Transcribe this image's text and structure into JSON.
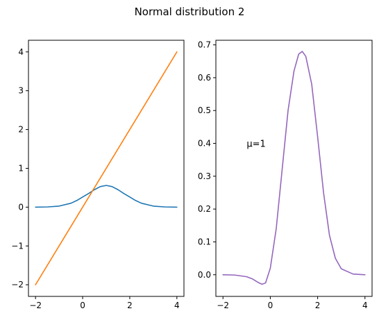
{
  "figure": {
    "suptitle": "Normal distribution 2"
  },
  "chart_data": [
    {
      "type": "line",
      "title": "",
      "xlabel": "",
      "ylabel": "",
      "xlim": [
        -2.3,
        4.3
      ],
      "ylim": [
        -2.3,
        4.3
      ],
      "xticks": [
        -2,
        0,
        2,
        4
      ],
      "xtick_labels": [
        "−2",
        "0",
        "2",
        "4"
      ],
      "yticks": [
        -2,
        -1,
        0,
        1,
        2,
        3,
        4
      ],
      "ytick_labels": [
        "−2",
        "−1",
        "0",
        "1",
        "2",
        "3",
        "4"
      ],
      "grid": false,
      "legend": "none",
      "series": [
        {
          "color": "#1f77b4",
          "x": [
            -2,
            -1.5,
            -1,
            -0.5,
            -0.25,
            0,
            0.25,
            0.5,
            0.75,
            1,
            1.25,
            1.5,
            1.75,
            2,
            2.25,
            2.5,
            3,
            3.5,
            4
          ],
          "y": [
            0.0,
            0.005,
            0.027,
            0.1,
            0.17,
            0.26,
            0.35,
            0.45,
            0.53,
            0.56,
            0.53,
            0.45,
            0.35,
            0.26,
            0.17,
            0.1,
            0.027,
            0.005,
            0.0
          ]
        },
        {
          "color": "#ff7f0e",
          "x": [
            -2,
            4
          ],
          "y": [
            -2,
            4
          ]
        }
      ]
    },
    {
      "type": "line",
      "title": "",
      "xlabel": "",
      "ylabel": "",
      "xlim": [
        -2.3,
        4.3
      ],
      "ylim": [
        -0.066,
        0.714
      ],
      "xticks": [
        -2,
        0,
        2,
        4
      ],
      "xtick_labels": [
        "−2",
        "0",
        "2",
        "4"
      ],
      "yticks": [
        0.0,
        0.1,
        0.2,
        0.3,
        0.4,
        0.5,
        0.6,
        0.7
      ],
      "ytick_labels": [
        "0.0",
        "0.1",
        "0.2",
        "0.3",
        "0.4",
        "0.5",
        "0.6",
        "0.7"
      ],
      "grid": false,
      "legend": "none",
      "annotations": [
        {
          "text": "μ=1",
          "x": -1.0,
          "y": 0.4
        }
      ],
      "series": [
        {
          "color": "#9467bd",
          "x": [
            -2,
            -1.5,
            -1,
            -0.75,
            -0.5,
            -0.35,
            -0.2,
            0,
            0.25,
            0.5,
            0.75,
            1,
            1.2,
            1.35,
            1.5,
            1.75,
            2,
            2.25,
            2.5,
            2.75,
            3,
            3.5,
            4
          ],
          "y": [
            0.0,
            -0.001,
            -0.006,
            -0.013,
            -0.024,
            -0.029,
            -0.025,
            0.02,
            0.14,
            0.32,
            0.5,
            0.62,
            0.672,
            0.68,
            0.665,
            0.58,
            0.42,
            0.25,
            0.12,
            0.05,
            0.018,
            0.002,
            0.0
          ]
        }
      ]
    }
  ]
}
